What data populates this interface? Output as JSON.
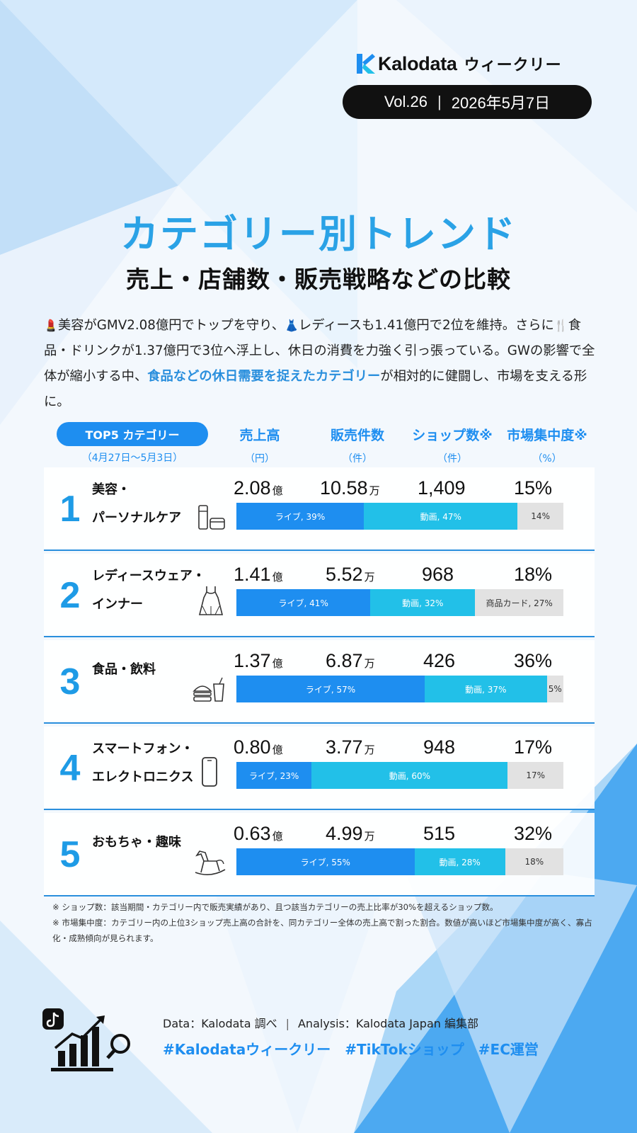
{
  "header": {
    "brand_name": "Kalodata",
    "brand_tag": "ウィークリー",
    "volume": "Vol.26",
    "date": "2026年5月7日"
  },
  "title": "カテゴリー別トレンド",
  "subtitle": "売上・店舗数・販売戦略などの比較",
  "summary": {
    "emoji_beauty": "💄",
    "part1": "美容がGMV2.08億円でトップを守り、",
    "emoji_ladies": "👗",
    "part2": "レディースも1.41億円で2位を維持。さらに",
    "emoji_food": "🍴",
    "part3": "食品・ドリンクが1.37億円で3位へ浮上し、休日の消費を力強く引っ張っている。GWの影響で全体が縮小する中、",
    "highlight": "食品などの休日需要を捉えたカテゴリー",
    "part4": "が相対的に健闘し、市場を支える形に。"
  },
  "table": {
    "top5_label": "TOP5 カテゴリー",
    "period": "（4月27日～5月3日）",
    "columns": [
      {
        "label": "売上高",
        "unit": "（円）"
      },
      {
        "label": "販売件数",
        "unit": "（件）"
      },
      {
        "label": "ショップ数※",
        "unit": "（件）"
      },
      {
        "label": "市場集中度※",
        "unit": "（%）"
      }
    ],
    "rows": [
      {
        "rank": "1",
        "name_lines": [
          "美容・",
          "パーソナルケア"
        ],
        "icon": "cosmetics-icon",
        "sales": "2.08",
        "sales_unit": "億",
        "count": "10.58",
        "count_unit": "万",
        "shops": "1,409",
        "concentration": "15%",
        "live_pct": 39,
        "live_label": "ライブ, 39%",
        "video_pct": 47,
        "video_label": "動画, 47%",
        "other_pct": 14,
        "other_label": "14%"
      },
      {
        "rank": "2",
        "name_lines": [
          "レディースウェア・",
          "インナー"
        ],
        "icon": "dress-icon",
        "sales": "1.41",
        "sales_unit": "億",
        "count": "5.52",
        "count_unit": "万",
        "shops": "968",
        "concentration": "18%",
        "live_pct": 41,
        "live_label": "ライブ, 41%",
        "video_pct": 32,
        "video_label": "動画, 32%",
        "other_pct": 27,
        "other_label": "商品カード, 27%"
      },
      {
        "rank": "3",
        "name_lines": [
          "食品・飲料"
        ],
        "icon": "burger-drink-icon",
        "sales": "1.37",
        "sales_unit": "億",
        "count": "6.87",
        "count_unit": "万",
        "shops": "426",
        "concentration": "36%",
        "live_pct": 57,
        "live_label": "ライブ, 57%",
        "video_pct": 37,
        "video_label": "動画, 37%",
        "other_pct": 5,
        "other_label": "5%"
      },
      {
        "rank": "4",
        "name_lines": [
          "スマートフォン・",
          "エレクトロニクス"
        ],
        "icon": "smartphone-icon",
        "sales": "0.80",
        "sales_unit": "億",
        "count": "3.77",
        "count_unit": "万",
        "shops": "948",
        "concentration": "17%",
        "live_pct": 23,
        "live_label": "ライブ, 23%",
        "video_pct": 60,
        "video_label": "動画, 60%",
        "other_pct": 17,
        "other_label": "17%"
      },
      {
        "rank": "5",
        "name_lines": [
          "おもちゃ・趣味"
        ],
        "icon": "rocking-horse-icon",
        "sales": "0.63",
        "sales_unit": "億",
        "count": "4.99",
        "count_unit": "万",
        "shops": "515",
        "concentration": "32%",
        "live_pct": 55,
        "live_label": "ライブ, 55%",
        "video_pct": 28,
        "video_label": "動画, 28%",
        "other_pct": 18,
        "other_label": "18%"
      }
    ]
  },
  "notes": [
    "※ ショップ数：該当期間・カテゴリー内で販売実績があり、且つ該当カテゴリーの売上比率が30%を超えるショップ数。",
    "※ 市場集中度：カテゴリー内の上位3ショップ売上高の合計を、同カテゴリー全体の売上高で割った割合。数値が高いほど市場集中度が高く、寡占化・成熟傾向が見られます。"
  ],
  "footer": {
    "data_source": "Data：Kalodata 調べ",
    "analysis": "Analysis：Kalodata Japan 編集部",
    "separator": "|",
    "hashtags": "#Kalodataウィークリー　#TikTokショップ　#EC運営"
  },
  "colors": {
    "accent": "#1e8ef0",
    "title": "#2aa2e6",
    "live": "#1e8ef0",
    "video": "#22c0e8",
    "other": "#e2e2e2"
  }
}
